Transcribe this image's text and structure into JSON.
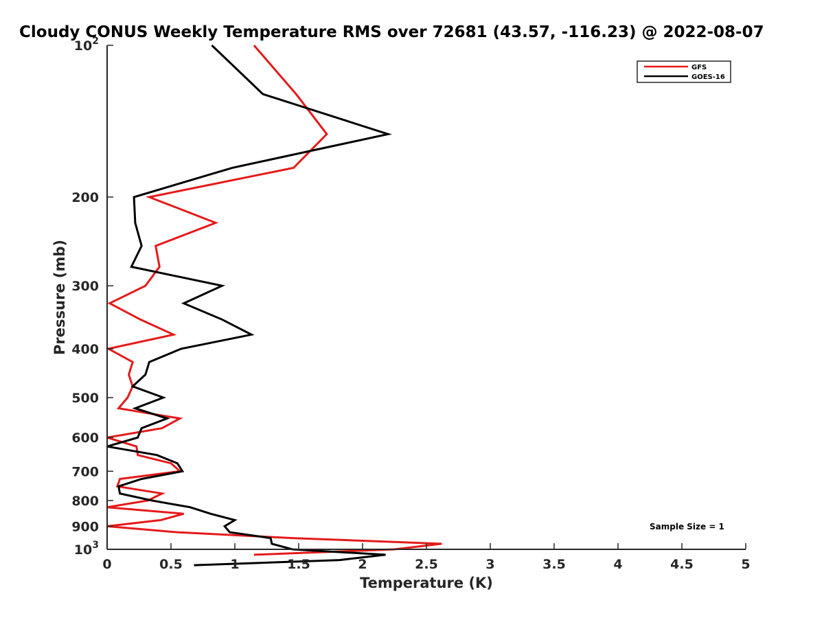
{
  "chart_data": {
    "type": "line",
    "title": "Cloudy CONUS Weekly Temperature RMS over 72681 (43.57, -116.23) @ 2022-08-07",
    "xlabel": "Temperature (K)",
    "ylabel": "Pressure (mb)",
    "xlim": [
      0,
      5
    ],
    "ylim": [
      100,
      1000
    ],
    "yscale": "log",
    "y_reversed": true,
    "x_ticks": [
      "0",
      "0.5",
      "1",
      "1.5",
      "2",
      "2.5",
      "3",
      "3.5",
      "4",
      "4.5",
      "5"
    ],
    "y_ticks": [
      {
        "value": 100,
        "base": "10",
        "exp": "2"
      },
      {
        "value": 200,
        "label": "200"
      },
      {
        "value": 300,
        "label": "300"
      },
      {
        "value": 400,
        "label": "400"
      },
      {
        "value": 500,
        "label": "500"
      },
      {
        "value": 600,
        "label": "600"
      },
      {
        "value": 700,
        "label": "700"
      },
      {
        "value": 800,
        "label": "800"
      },
      {
        "value": 900,
        "label": "900"
      },
      {
        "value": 1000,
        "base": "10",
        "exp": "3"
      }
    ],
    "legend_position": "top-right",
    "annotation": "Sample Size = 1",
    "series": [
      {
        "name": "GFS",
        "color": "#e41a1a",
        "points": [
          [
            1.15,
            100
          ],
          [
            1.48,
            125
          ],
          [
            1.72,
            150
          ],
          [
            1.46,
            175
          ],
          [
            0.33,
            200
          ],
          [
            0.85,
            225
          ],
          [
            0.38,
            250
          ],
          [
            0.41,
            275
          ],
          [
            0.3,
            300
          ],
          [
            0.02,
            325
          ],
          [
            0.26,
            350
          ],
          [
            0.52,
            375
          ],
          [
            0.01,
            400
          ],
          [
            0.2,
            425
          ],
          [
            0.17,
            450
          ],
          [
            0.2,
            475
          ],
          [
            0.16,
            500
          ],
          [
            0.09,
            525
          ],
          [
            0.57,
            550
          ],
          [
            0.43,
            575
          ],
          [
            0.0,
            600
          ],
          [
            0.23,
            625
          ],
          [
            0.24,
            650
          ],
          [
            0.5,
            675
          ],
          [
            0.57,
            700
          ],
          [
            0.1,
            725
          ],
          [
            0.08,
            750
          ],
          [
            0.43,
            775
          ],
          [
            0.32,
            800
          ],
          [
            0.0,
            825
          ],
          [
            0.6,
            850
          ],
          [
            0.42,
            875
          ],
          [
            0.0,
            900
          ],
          [
            0.55,
            925
          ],
          [
            1.45,
            950
          ],
          [
            2.62,
            975
          ],
          [
            2.25,
            1000
          ],
          [
            1.15,
            1025
          ]
        ]
      },
      {
        "name": "GOES-16",
        "color": "#000000",
        "points": [
          [
            0.82,
            100
          ],
          [
            1.22,
            125
          ],
          [
            2.2,
            150
          ],
          [
            0.98,
            175
          ],
          [
            0.21,
            200
          ],
          [
            0.22,
            225
          ],
          [
            0.27,
            250
          ],
          [
            0.19,
            275
          ],
          [
            0.9,
            300
          ],
          [
            0.6,
            325
          ],
          [
            0.9,
            350
          ],
          [
            1.13,
            375
          ],
          [
            0.58,
            400
          ],
          [
            0.33,
            425
          ],
          [
            0.3,
            450
          ],
          [
            0.2,
            475
          ],
          [
            0.44,
            500
          ],
          [
            0.22,
            525
          ],
          [
            0.47,
            550
          ],
          [
            0.27,
            575
          ],
          [
            0.24,
            600
          ],
          [
            0.0,
            625
          ],
          [
            0.39,
            650
          ],
          [
            0.55,
            675
          ],
          [
            0.59,
            700
          ],
          [
            0.27,
            725
          ],
          [
            0.09,
            750
          ],
          [
            0.1,
            775
          ],
          [
            0.35,
            800
          ],
          [
            0.65,
            825
          ],
          [
            0.81,
            850
          ],
          [
            1.0,
            875
          ],
          [
            0.92,
            900
          ],
          [
            0.96,
            925
          ],
          [
            1.28,
            950
          ],
          [
            1.29,
            975
          ],
          [
            1.45,
            1000
          ],
          [
            2.18,
            1025
          ],
          [
            1.82,
            1050
          ],
          [
            0.68,
            1075
          ]
        ]
      }
    ]
  }
}
